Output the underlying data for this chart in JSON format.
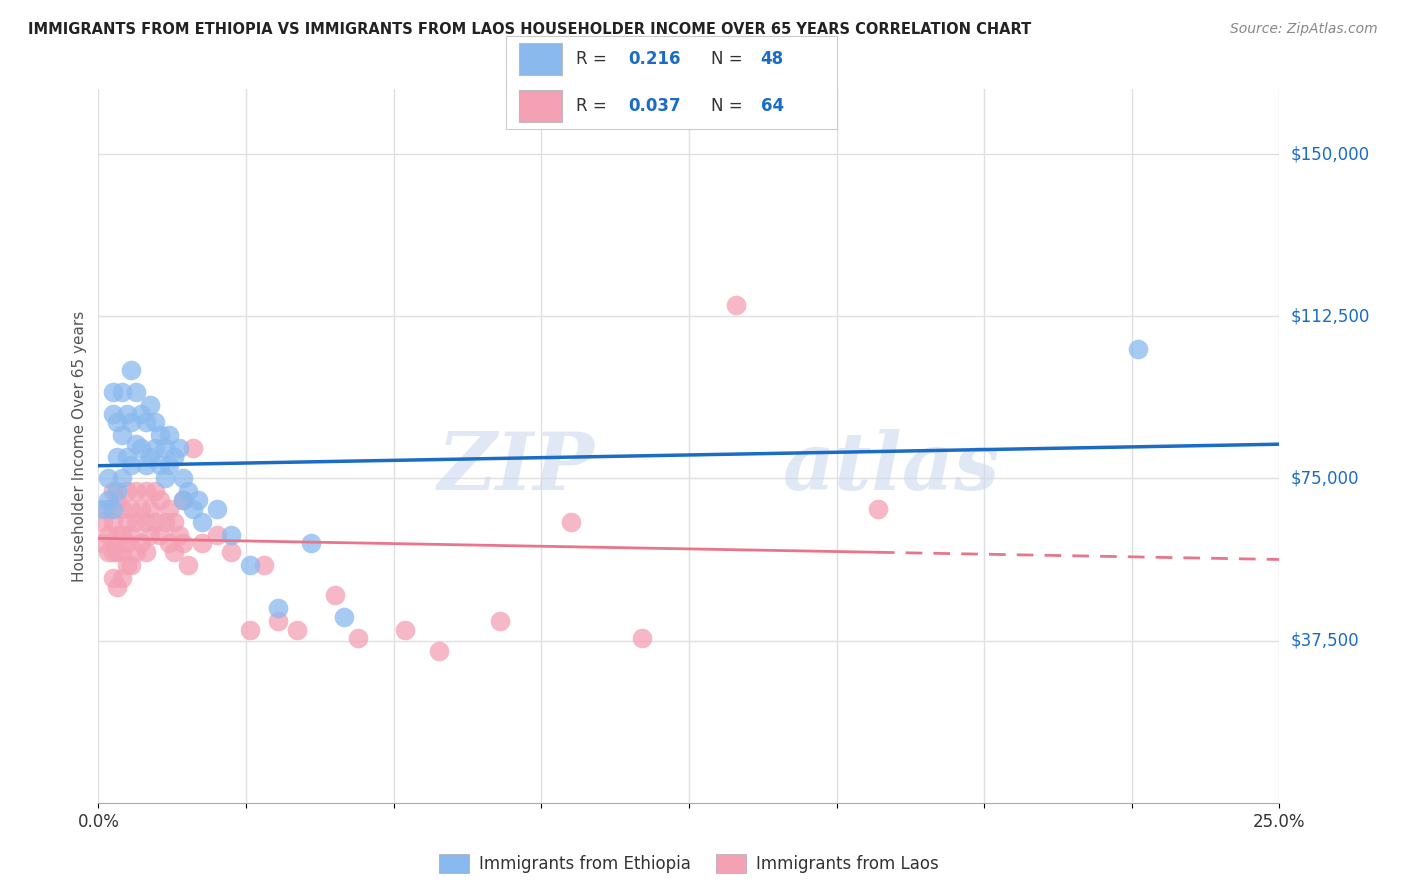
{
  "title": "IMMIGRANTS FROM ETHIOPIA VS IMMIGRANTS FROM LAOS HOUSEHOLDER INCOME OVER 65 YEARS CORRELATION CHART",
  "source": "Source: ZipAtlas.com",
  "ylabel": "Householder Income Over 65 years",
  "ytick_labels": [
    "$37,500",
    "$75,000",
    "$112,500",
    "$150,000"
  ],
  "ytick_values": [
    37500,
    75000,
    112500,
    150000
  ],
  "xlim": [
    0.0,
    0.25
  ],
  "ylim": [
    0,
    165000
  ],
  "watermark_text": "ZIP",
  "watermark_text2": "atlas",
  "legend_ethiopia_r": "0.216",
  "legend_ethiopia_n": "48",
  "legend_laos_r": "0.037",
  "legend_laos_n": "64",
  "ethiopia_color": "#8ab9ee",
  "laos_color": "#f4a0b5",
  "ethiopia_line_color": "#1a6cc4",
  "laos_line_color": "#e8758a",
  "background_color": "#ffffff",
  "grid_color": "#e0e0e0",
  "ethiopia_label": "Immigrants from Ethiopia",
  "laos_label": "Immigrants from Laos",
  "ethiopia_x": [
    0.001,
    0.002,
    0.002,
    0.003,
    0.003,
    0.003,
    0.004,
    0.004,
    0.004,
    0.005,
    0.005,
    0.005,
    0.006,
    0.006,
    0.007,
    0.007,
    0.007,
    0.008,
    0.008,
    0.009,
    0.009,
    0.01,
    0.01,
    0.011,
    0.011,
    0.012,
    0.012,
    0.013,
    0.013,
    0.014,
    0.014,
    0.015,
    0.015,
    0.016,
    0.017,
    0.018,
    0.018,
    0.019,
    0.02,
    0.021,
    0.022,
    0.025,
    0.028,
    0.032,
    0.038,
    0.045,
    0.052,
    0.22
  ],
  "ethiopia_y": [
    68000,
    75000,
    70000,
    95000,
    90000,
    68000,
    88000,
    80000,
    72000,
    95000,
    85000,
    75000,
    90000,
    80000,
    100000,
    88000,
    78000,
    95000,
    83000,
    90000,
    82000,
    88000,
    78000,
    92000,
    80000,
    88000,
    82000,
    85000,
    78000,
    82000,
    75000,
    85000,
    78000,
    80000,
    82000,
    75000,
    70000,
    72000,
    68000,
    70000,
    65000,
    68000,
    62000,
    55000,
    45000,
    60000,
    43000,
    105000
  ],
  "laos_x": [
    0.001,
    0.001,
    0.002,
    0.002,
    0.002,
    0.003,
    0.003,
    0.003,
    0.003,
    0.004,
    0.004,
    0.004,
    0.004,
    0.005,
    0.005,
    0.005,
    0.005,
    0.006,
    0.006,
    0.006,
    0.006,
    0.007,
    0.007,
    0.007,
    0.008,
    0.008,
    0.008,
    0.009,
    0.009,
    0.01,
    0.01,
    0.01,
    0.011,
    0.011,
    0.012,
    0.012,
    0.013,
    0.013,
    0.014,
    0.015,
    0.015,
    0.016,
    0.016,
    0.017,
    0.018,
    0.018,
    0.019,
    0.02,
    0.022,
    0.025,
    0.028,
    0.032,
    0.035,
    0.038,
    0.042,
    0.05,
    0.055,
    0.065,
    0.072,
    0.085,
    0.1,
    0.115,
    0.135,
    0.165
  ],
  "laos_y": [
    65000,
    60000,
    68000,
    62000,
    58000,
    72000,
    65000,
    58000,
    52000,
    70000,
    62000,
    58000,
    50000,
    68000,
    62000,
    58000,
    52000,
    72000,
    65000,
    60000,
    55000,
    68000,
    62000,
    55000,
    72000,
    65000,
    58000,
    68000,
    60000,
    72000,
    65000,
    58000,
    68000,
    62000,
    72000,
    65000,
    70000,
    62000,
    65000,
    68000,
    60000,
    65000,
    58000,
    62000,
    70000,
    60000,
    55000,
    82000,
    60000,
    62000,
    58000,
    40000,
    55000,
    42000,
    40000,
    48000,
    38000,
    40000,
    35000,
    42000,
    65000,
    38000,
    115000,
    68000
  ]
}
